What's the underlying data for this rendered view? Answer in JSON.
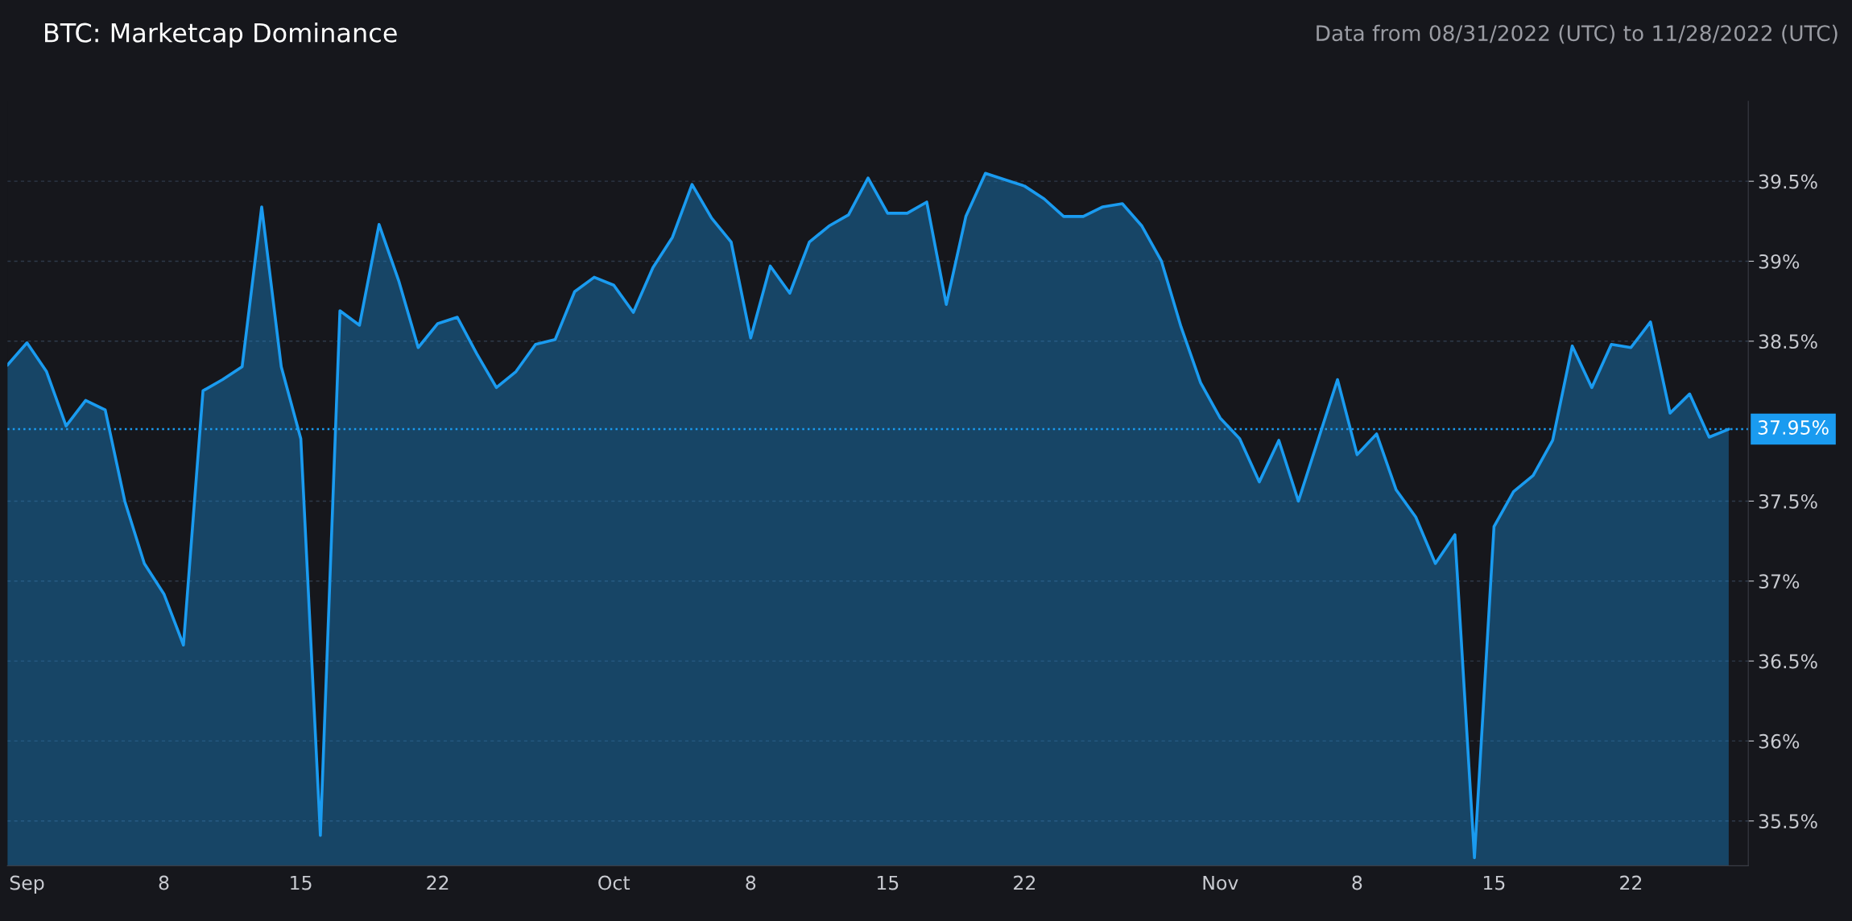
{
  "chart_data": {
    "type": "area",
    "title": "BTC: Marketcap Dominance",
    "subtitle": "Data from 08/31/2022 (UTC) to 11/28/2022 (UTC)",
    "x": [
      "2022-08-31",
      "2022-09-01",
      "2022-09-02",
      "2022-09-03",
      "2022-09-04",
      "2022-09-05",
      "2022-09-06",
      "2022-09-07",
      "2022-09-08",
      "2022-09-09",
      "2022-09-10",
      "2022-09-11",
      "2022-09-12",
      "2022-09-13",
      "2022-09-14",
      "2022-09-15",
      "2022-09-16",
      "2022-09-17",
      "2022-09-18",
      "2022-09-19",
      "2022-09-20",
      "2022-09-21",
      "2022-09-22",
      "2022-09-23",
      "2022-09-24",
      "2022-09-25",
      "2022-09-26",
      "2022-09-27",
      "2022-09-28",
      "2022-09-29",
      "2022-09-30",
      "2022-10-01",
      "2022-10-02",
      "2022-10-03",
      "2022-10-04",
      "2022-10-05",
      "2022-10-06",
      "2022-10-07",
      "2022-10-08",
      "2022-10-09",
      "2022-10-10",
      "2022-10-11",
      "2022-10-12",
      "2022-10-13",
      "2022-10-14",
      "2022-10-15",
      "2022-10-16",
      "2022-10-17",
      "2022-10-18",
      "2022-10-19",
      "2022-10-20",
      "2022-10-21",
      "2022-10-22",
      "2022-10-23",
      "2022-10-24",
      "2022-10-25",
      "2022-10-26",
      "2022-10-27",
      "2022-10-28",
      "2022-10-29",
      "2022-10-30",
      "2022-10-31",
      "2022-11-01",
      "2022-11-02",
      "2022-11-03",
      "2022-11-04",
      "2022-11-05",
      "2022-11-06",
      "2022-11-07",
      "2022-11-08",
      "2022-11-09",
      "2022-11-10",
      "2022-11-11",
      "2022-11-12",
      "2022-11-13",
      "2022-11-14",
      "2022-11-15",
      "2022-11-16",
      "2022-11-17",
      "2022-11-18",
      "2022-11-19",
      "2022-11-20",
      "2022-11-21",
      "2022-11-22",
      "2022-11-23",
      "2022-11-24",
      "2022-11-25",
      "2022-11-26",
      "2022-11-27"
    ],
    "series": [
      {
        "color": "#1a9bf0",
        "values": [
          38.35,
          38.49,
          38.31,
          37.97,
          38.13,
          38.07,
          37.5,
          37.11,
          36.92,
          36.6,
          38.19,
          38.26,
          38.34,
          39.34,
          38.34,
          37.89,
          35.41,
          38.69,
          38.6,
          39.23,
          38.88,
          38.46,
          38.61,
          38.65,
          38.42,
          38.21,
          38.31,
          38.48,
          38.51,
          38.81,
          38.9,
          38.85,
          38.68,
          38.96,
          39.15,
          39.48,
          39.27,
          39.12,
          38.52,
          38.97,
          38.8,
          39.12,
          39.22,
          39.29,
          39.52,
          39.3,
          39.3,
          39.37,
          38.73,
          39.28,
          39.55,
          39.51,
          39.47,
          39.39,
          39.28,
          39.28,
          39.34,
          39.36,
          39.22,
          39.0,
          38.59,
          38.24,
          38.02,
          37.89,
          37.62,
          37.88,
          37.5,
          37.88,
          38.26,
          37.79,
          37.92,
          37.57,
          37.4,
          37.11,
          37.29,
          35.27,
          37.34,
          37.56,
          37.66,
          37.88,
          38.47,
          38.21,
          38.48,
          38.46,
          38.62,
          38.05,
          38.17,
          37.9,
          37.95
        ]
      }
    ],
    "xlim": [
      "2022-08-31",
      "2022-11-28"
    ],
    "xticks": [
      {
        "value": "2022-09-01",
        "label": "Sep"
      },
      {
        "value": "2022-09-08",
        "label": "8"
      },
      {
        "value": "2022-09-15",
        "label": "15"
      },
      {
        "value": "2022-09-22",
        "label": "22"
      },
      {
        "value": "2022-10-01",
        "label": "Oct"
      },
      {
        "value": "2022-10-08",
        "label": "8"
      },
      {
        "value": "2022-10-15",
        "label": "15"
      },
      {
        "value": "2022-10-22",
        "label": "22"
      },
      {
        "value": "2022-11-01",
        "label": "Nov"
      },
      {
        "value": "2022-11-08",
        "label": "8"
      },
      {
        "value": "2022-11-15",
        "label": "15"
      },
      {
        "value": "2022-11-22",
        "label": "22"
      }
    ],
    "ylim": [
      35.22,
      40.0
    ],
    "yticks": [
      {
        "value": 35.5,
        "label": "35.5%"
      },
      {
        "value": 36,
        "label": "36%"
      },
      {
        "value": 36.5,
        "label": "36.5%"
      },
      {
        "value": 37,
        "label": "37%"
      },
      {
        "value": 37.5,
        "label": "37.5%"
      },
      {
        "value": 38.5,
        "label": "38.5%"
      },
      {
        "value": 39,
        "label": "39%"
      },
      {
        "value": 39.5,
        "label": "39.5%"
      }
    ],
    "ref_lines": [
      {
        "axis": "y",
        "value": 37.95,
        "label": "37.95%",
        "color": "#1a9bf0",
        "line_style": "dotted"
      }
    ],
    "grid": "y",
    "legend": false
  }
}
